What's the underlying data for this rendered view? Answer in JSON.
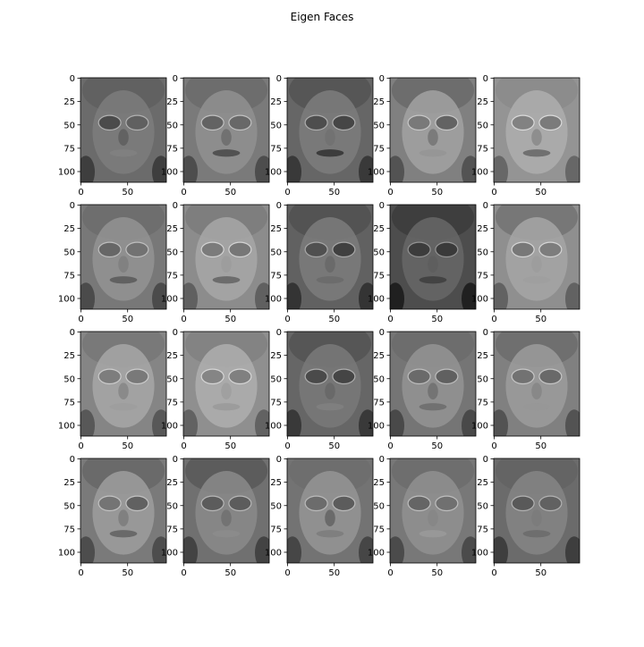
{
  "title": "Eigen Faces",
  "grid": {
    "rows": 4,
    "cols": 5
  },
  "image_size": {
    "height": 112,
    "width": 92
  },
  "colormap": "gray",
  "y_ticks": [
    0,
    25,
    50,
    75,
    100
  ],
  "x_ticks": [
    0,
    50
  ],
  "panels": [
    {
      "row": 0,
      "col": 0,
      "tone": 0.42
    },
    {
      "row": 0,
      "col": 1,
      "tone": 0.48
    },
    {
      "row": 0,
      "col": 2,
      "tone": 0.4
    },
    {
      "row": 0,
      "col": 3,
      "tone": 0.5
    },
    {
      "row": 0,
      "col": 4,
      "tone": 0.58
    },
    {
      "row": 1,
      "col": 0,
      "tone": 0.47
    },
    {
      "row": 1,
      "col": 1,
      "tone": 0.55
    },
    {
      "row": 1,
      "col": 2,
      "tone": 0.38
    },
    {
      "row": 1,
      "col": 3,
      "tone": 0.3
    },
    {
      "row": 1,
      "col": 4,
      "tone": 0.56
    },
    {
      "row": 2,
      "col": 0,
      "tone": 0.52
    },
    {
      "row": 2,
      "col": 1,
      "tone": 0.56
    },
    {
      "row": 2,
      "col": 2,
      "tone": 0.4
    },
    {
      "row": 2,
      "col": 3,
      "tone": 0.46
    },
    {
      "row": 2,
      "col": 4,
      "tone": 0.5
    },
    {
      "row": 3,
      "col": 0,
      "tone": 0.48
    },
    {
      "row": 3,
      "col": 1,
      "tone": 0.44
    },
    {
      "row": 3,
      "col": 2,
      "tone": 0.45
    },
    {
      "row": 3,
      "col": 3,
      "tone": 0.47
    },
    {
      "row": 3,
      "col": 4,
      "tone": 0.42
    }
  ]
}
